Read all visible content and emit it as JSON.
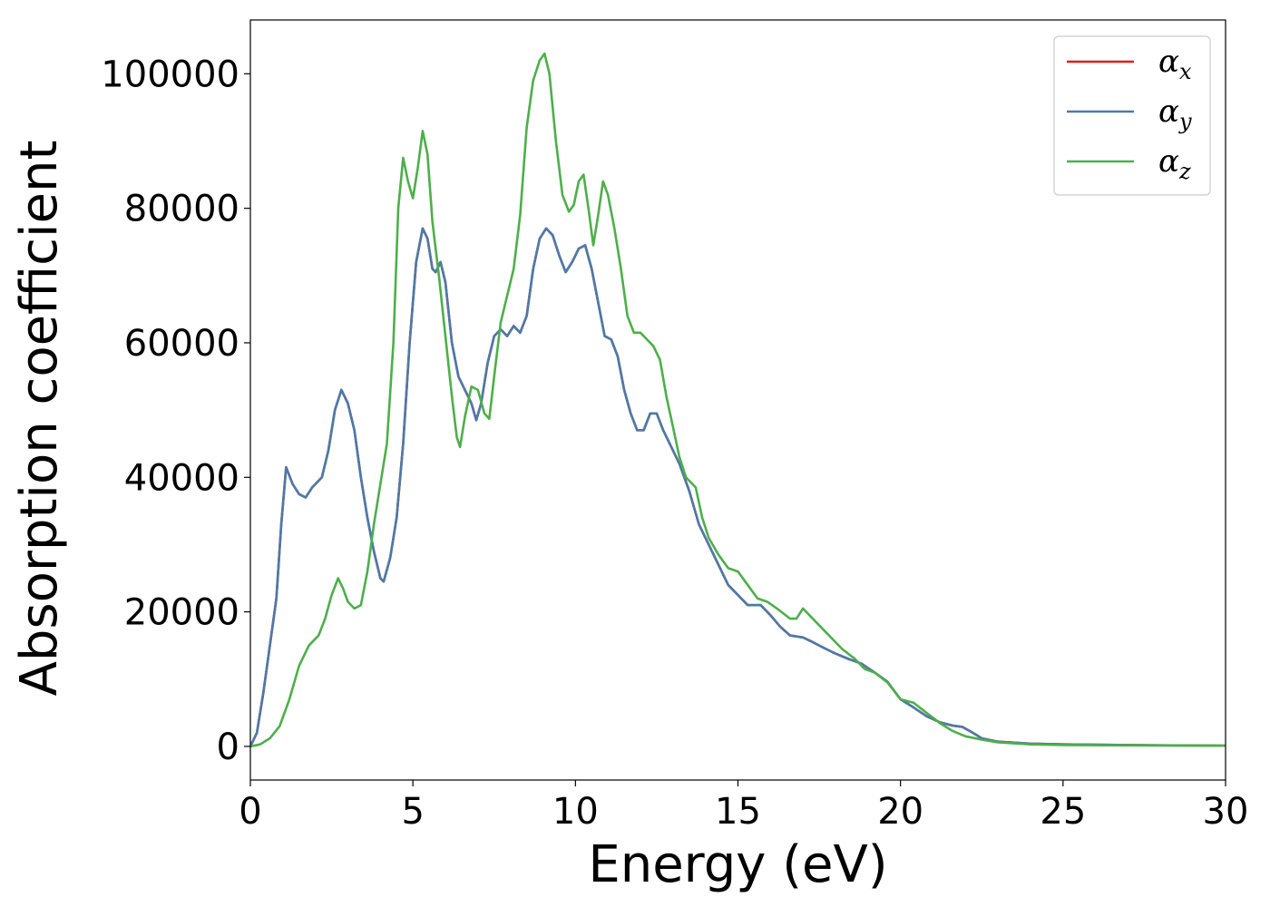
{
  "chart_data": {
    "type": "line",
    "xlabel": "Energy (eV)",
    "ylabel": "Absorption coefficient",
    "xlim": [
      0,
      30
    ],
    "ylim": [
      -5000,
      108000
    ],
    "xticks": [
      0,
      5,
      10,
      15,
      20,
      25,
      30
    ],
    "xtick_labels": [
      "0",
      "5",
      "10",
      "15",
      "20",
      "25",
      "30"
    ],
    "yticks": [
      0,
      20000,
      40000,
      60000,
      80000,
      100000
    ],
    "ytick_labels": [
      "0",
      "20000",
      "40000",
      "60000",
      "80000",
      "100000"
    ],
    "grid": false,
    "legend_position": "top-right",
    "series": [
      {
        "name": "αx",
        "symbol": "α",
        "subscript": "x",
        "color": "#e41a1c",
        "points": [
          [
            0,
            0
          ],
          [
            0.2,
            2000
          ],
          [
            0.4,
            8000
          ],
          [
            0.6,
            15000
          ],
          [
            0.8,
            22000
          ],
          [
            0.95,
            33000
          ],
          [
            1.1,
            41500
          ],
          [
            1.3,
            39000
          ],
          [
            1.5,
            37500
          ],
          [
            1.7,
            37000
          ],
          [
            1.9,
            38500
          ],
          [
            2.2,
            40000
          ],
          [
            2.4,
            44000
          ],
          [
            2.6,
            50000
          ],
          [
            2.8,
            53000
          ],
          [
            3.0,
            51000
          ],
          [
            3.2,
            47000
          ],
          [
            3.4,
            40000
          ],
          [
            3.6,
            34000
          ],
          [
            3.8,
            29000
          ],
          [
            4.0,
            25000
          ],
          [
            4.1,
            24500
          ],
          [
            4.3,
            28000
          ],
          [
            4.5,
            34000
          ],
          [
            4.7,
            45000
          ],
          [
            4.9,
            60000
          ],
          [
            5.1,
            72000
          ],
          [
            5.3,
            77000
          ],
          [
            5.45,
            75500
          ],
          [
            5.6,
            71000
          ],
          [
            5.7,
            70500
          ],
          [
            5.85,
            72000
          ],
          [
            6.0,
            69000
          ],
          [
            6.2,
            60000
          ],
          [
            6.4,
            55000
          ],
          [
            6.6,
            53000
          ],
          [
            6.8,
            51000
          ],
          [
            6.95,
            48500
          ],
          [
            7.1,
            51000
          ],
          [
            7.3,
            57000
          ],
          [
            7.5,
            61000
          ],
          [
            7.7,
            62000
          ],
          [
            7.9,
            61000
          ],
          [
            8.1,
            62500
          ],
          [
            8.3,
            61500
          ],
          [
            8.5,
            64000
          ],
          [
            8.7,
            71000
          ],
          [
            8.9,
            75500
          ],
          [
            9.1,
            77000
          ],
          [
            9.3,
            76000
          ],
          [
            9.5,
            73000
          ],
          [
            9.7,
            70500
          ],
          [
            9.9,
            72000
          ],
          [
            10.1,
            74000
          ],
          [
            10.3,
            74500
          ],
          [
            10.5,
            71000
          ],
          [
            10.7,
            66000
          ],
          [
            10.9,
            61000
          ],
          [
            11.1,
            60500
          ],
          [
            11.3,
            58000
          ],
          [
            11.5,
            53000
          ],
          [
            11.7,
            49500
          ],
          [
            11.9,
            47000
          ],
          [
            12.1,
            47000
          ],
          [
            12.3,
            49500
          ],
          [
            12.5,
            49500
          ],
          [
            12.7,
            47000
          ],
          [
            12.9,
            45000
          ],
          [
            13.2,
            42000
          ],
          [
            13.5,
            38000
          ],
          [
            13.8,
            33000
          ],
          [
            14.1,
            30000
          ],
          [
            14.4,
            27000
          ],
          [
            14.7,
            24000
          ],
          [
            15.0,
            22500
          ],
          [
            15.3,
            21000
          ],
          [
            15.7,
            21000
          ],
          [
            16.0,
            19500
          ],
          [
            16.3,
            17800
          ],
          [
            16.6,
            16500
          ],
          [
            17.0,
            16200
          ],
          [
            17.3,
            15500
          ],
          [
            17.7,
            14500
          ],
          [
            18.0,
            13800
          ],
          [
            18.4,
            13000
          ],
          [
            18.8,
            12300
          ],
          [
            19.2,
            11000
          ],
          [
            19.6,
            9600
          ],
          [
            20.0,
            7000
          ],
          [
            20.4,
            5800
          ],
          [
            20.8,
            4500
          ],
          [
            21.2,
            3600
          ],
          [
            21.6,
            3100
          ],
          [
            21.9,
            2900
          ],
          [
            22.2,
            2100
          ],
          [
            22.5,
            1200
          ],
          [
            23.0,
            700
          ],
          [
            24.0,
            400
          ],
          [
            25.0,
            300
          ],
          [
            27.0,
            200
          ],
          [
            30.0,
            100
          ]
        ]
      },
      {
        "name": "αy",
        "symbol": "α",
        "subscript": "y",
        "color": "#4a7ba8",
        "points": [
          [
            0,
            0
          ],
          [
            0.2,
            2000
          ],
          [
            0.4,
            8000
          ],
          [
            0.6,
            15000
          ],
          [
            0.8,
            22000
          ],
          [
            0.95,
            33000
          ],
          [
            1.1,
            41500
          ],
          [
            1.3,
            39000
          ],
          [
            1.5,
            37500
          ],
          [
            1.7,
            37000
          ],
          [
            1.9,
            38500
          ],
          [
            2.2,
            40000
          ],
          [
            2.4,
            44000
          ],
          [
            2.6,
            50000
          ],
          [
            2.8,
            53000
          ],
          [
            3.0,
            51000
          ],
          [
            3.2,
            47000
          ],
          [
            3.4,
            40000
          ],
          [
            3.6,
            34000
          ],
          [
            3.8,
            29000
          ],
          [
            4.0,
            25000
          ],
          [
            4.1,
            24500
          ],
          [
            4.3,
            28000
          ],
          [
            4.5,
            34000
          ],
          [
            4.7,
            45000
          ],
          [
            4.9,
            60000
          ],
          [
            5.1,
            72000
          ],
          [
            5.3,
            77000
          ],
          [
            5.45,
            75500
          ],
          [
            5.6,
            71000
          ],
          [
            5.7,
            70500
          ],
          [
            5.85,
            72000
          ],
          [
            6.0,
            69000
          ],
          [
            6.2,
            60000
          ],
          [
            6.4,
            55000
          ],
          [
            6.6,
            53000
          ],
          [
            6.8,
            51000
          ],
          [
            6.95,
            48500
          ],
          [
            7.1,
            51000
          ],
          [
            7.3,
            57000
          ],
          [
            7.5,
            61000
          ],
          [
            7.7,
            62000
          ],
          [
            7.9,
            61000
          ],
          [
            8.1,
            62500
          ],
          [
            8.3,
            61500
          ],
          [
            8.5,
            64000
          ],
          [
            8.7,
            71000
          ],
          [
            8.9,
            75500
          ],
          [
            9.1,
            77000
          ],
          [
            9.3,
            76000
          ],
          [
            9.5,
            73000
          ],
          [
            9.7,
            70500
          ],
          [
            9.9,
            72000
          ],
          [
            10.1,
            74000
          ],
          [
            10.3,
            74500
          ],
          [
            10.5,
            71000
          ],
          [
            10.7,
            66000
          ],
          [
            10.9,
            61000
          ],
          [
            11.1,
            60500
          ],
          [
            11.3,
            58000
          ],
          [
            11.5,
            53000
          ],
          [
            11.7,
            49500
          ],
          [
            11.9,
            47000
          ],
          [
            12.1,
            47000
          ],
          [
            12.3,
            49500
          ],
          [
            12.5,
            49500
          ],
          [
            12.7,
            47000
          ],
          [
            12.9,
            45000
          ],
          [
            13.2,
            42000
          ],
          [
            13.5,
            38000
          ],
          [
            13.8,
            33000
          ],
          [
            14.1,
            30000
          ],
          [
            14.4,
            27000
          ],
          [
            14.7,
            24000
          ],
          [
            15.0,
            22500
          ],
          [
            15.3,
            21000
          ],
          [
            15.7,
            21000
          ],
          [
            16.0,
            19500
          ],
          [
            16.3,
            17800
          ],
          [
            16.6,
            16500
          ],
          [
            17.0,
            16200
          ],
          [
            17.3,
            15500
          ],
          [
            17.7,
            14500
          ],
          [
            18.0,
            13800
          ],
          [
            18.4,
            13000
          ],
          [
            18.8,
            12300
          ],
          [
            19.2,
            11000
          ],
          [
            19.6,
            9600
          ],
          [
            20.0,
            7000
          ],
          [
            20.4,
            5800
          ],
          [
            20.8,
            4500
          ],
          [
            21.2,
            3600
          ],
          [
            21.6,
            3100
          ],
          [
            21.9,
            2900
          ],
          [
            22.2,
            2100
          ],
          [
            22.5,
            1200
          ],
          [
            23.0,
            700
          ],
          [
            24.0,
            400
          ],
          [
            25.0,
            300
          ],
          [
            27.0,
            200
          ],
          [
            30.0,
            100
          ]
        ]
      },
      {
        "name": "αz",
        "symbol": "α",
        "subscript": "z",
        "color": "#4daf4a",
        "points": [
          [
            0,
            0
          ],
          [
            0.3,
            300
          ],
          [
            0.6,
            1200
          ],
          [
            0.9,
            3000
          ],
          [
            1.2,
            7000
          ],
          [
            1.5,
            12000
          ],
          [
            1.8,
            15000
          ],
          [
            2.1,
            16500
          ],
          [
            2.3,
            19000
          ],
          [
            2.5,
            22500
          ],
          [
            2.7,
            25000
          ],
          [
            2.85,
            23500
          ],
          [
            3.0,
            21500
          ],
          [
            3.2,
            20500
          ],
          [
            3.4,
            21000
          ],
          [
            3.6,
            26000
          ],
          [
            3.8,
            33000
          ],
          [
            4.0,
            39000
          ],
          [
            4.2,
            45000
          ],
          [
            4.4,
            60000
          ],
          [
            4.55,
            80000
          ],
          [
            4.7,
            87500
          ],
          [
            4.85,
            84000
          ],
          [
            5.0,
            81500
          ],
          [
            5.15,
            86000
          ],
          [
            5.3,
            91500
          ],
          [
            5.45,
            88000
          ],
          [
            5.6,
            78000
          ],
          [
            5.8,
            70000
          ],
          [
            6.0,
            61000
          ],
          [
            6.2,
            52000
          ],
          [
            6.35,
            46000
          ],
          [
            6.45,
            44500
          ],
          [
            6.6,
            49000
          ],
          [
            6.8,
            53500
          ],
          [
            7.0,
            53000
          ],
          [
            7.2,
            49500
          ],
          [
            7.35,
            48700
          ],
          [
            7.5,
            55000
          ],
          [
            7.7,
            63000
          ],
          [
            7.9,
            67000
          ],
          [
            8.1,
            71000
          ],
          [
            8.3,
            79000
          ],
          [
            8.5,
            92000
          ],
          [
            8.7,
            99000
          ],
          [
            8.9,
            102000
          ],
          [
            9.05,
            103000
          ],
          [
            9.2,
            100000
          ],
          [
            9.4,
            90000
          ],
          [
            9.6,
            82000
          ],
          [
            9.8,
            79500
          ],
          [
            9.95,
            80500
          ],
          [
            10.1,
            84000
          ],
          [
            10.25,
            85000
          ],
          [
            10.4,
            80000
          ],
          [
            10.55,
            74500
          ],
          [
            10.7,
            79000
          ],
          [
            10.85,
            84000
          ],
          [
            11.0,
            82000
          ],
          [
            11.2,
            77000
          ],
          [
            11.4,
            71000
          ],
          [
            11.6,
            64000
          ],
          [
            11.8,
            61500
          ],
          [
            12.0,
            61500
          ],
          [
            12.2,
            60500
          ],
          [
            12.4,
            59500
          ],
          [
            12.6,
            57500
          ],
          [
            12.8,
            52000
          ],
          [
            13.0,
            47500
          ],
          [
            13.2,
            43000
          ],
          [
            13.4,
            40000
          ],
          [
            13.7,
            38500
          ],
          [
            13.9,
            34000
          ],
          [
            14.1,
            31000
          ],
          [
            14.4,
            28500
          ],
          [
            14.7,
            26500
          ],
          [
            15.0,
            26000
          ],
          [
            15.3,
            24000
          ],
          [
            15.6,
            22000
          ],
          [
            15.9,
            21500
          ],
          [
            16.2,
            20500
          ],
          [
            16.6,
            19000
          ],
          [
            16.8,
            19000
          ],
          [
            17.0,
            20500
          ],
          [
            17.2,
            19500
          ],
          [
            17.5,
            18000
          ],
          [
            17.9,
            16000
          ],
          [
            18.2,
            14500
          ],
          [
            18.6,
            13000
          ],
          [
            18.9,
            11500
          ],
          [
            19.2,
            11000
          ],
          [
            19.6,
            9500
          ],
          [
            20.0,
            7000
          ],
          [
            20.4,
            6500
          ],
          [
            20.8,
            5000
          ],
          [
            21.2,
            3500
          ],
          [
            21.6,
            2300
          ],
          [
            22.0,
            1500
          ],
          [
            22.5,
            1000
          ],
          [
            23.0,
            600
          ],
          [
            24.0,
            300
          ],
          [
            25.0,
            200
          ],
          [
            27.0,
            150
          ],
          [
            30.0,
            100
          ]
        ]
      }
    ]
  }
}
